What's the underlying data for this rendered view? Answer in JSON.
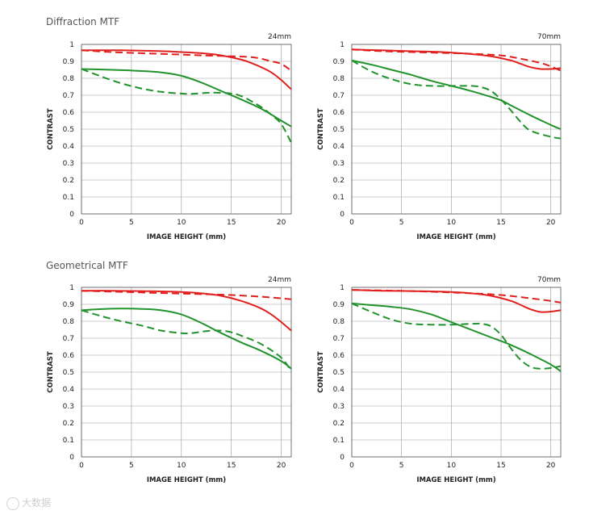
{
  "sections": [
    {
      "title": "Diffraction MTF"
    },
    {
      "title": "Geometrical MTF"
    }
  ],
  "colors": {
    "sagittal_red": "#e0201f",
    "meridional_green": "#22922c",
    "grid": "#999999"
  },
  "watermark": "大数据",
  "chart_data": [
    {
      "type": "line",
      "section": "Diffraction MTF",
      "focal_label": "24mm",
      "xlabel": "IMAGE HEIGHT (mm)",
      "ylabel": "CONTRAST",
      "xlim": [
        0,
        21
      ],
      "ylim": [
        0,
        1
      ],
      "xticks": [
        0,
        5,
        10,
        15,
        20
      ],
      "yticks": [
        0,
        0.1,
        0.2,
        0.3,
        0.4,
        0.5,
        0.6,
        0.7,
        0.8,
        0.9,
        1
      ],
      "series": [
        {
          "name": "red-solid",
          "color": "#e0201f",
          "dashed": false,
          "x": [
            0,
            2,
            4,
            6,
            8,
            10,
            12,
            14,
            16,
            17,
            18,
            19,
            20,
            21
          ],
          "y": [
            0.965,
            0.965,
            0.965,
            0.963,
            0.96,
            0.955,
            0.948,
            0.935,
            0.91,
            0.89,
            0.865,
            0.835,
            0.79,
            0.735
          ]
        },
        {
          "name": "red-dashed",
          "color": "#e0201f",
          "dashed": true,
          "x": [
            0,
            3,
            6,
            9,
            12,
            15,
            17,
            18,
            19,
            20,
            21
          ],
          "y": [
            0.965,
            0.955,
            0.948,
            0.942,
            0.935,
            0.93,
            0.925,
            0.915,
            0.9,
            0.885,
            0.845
          ]
        },
        {
          "name": "green-solid",
          "color": "#22922c",
          "dashed": false,
          "x": [
            0,
            2,
            4,
            6,
            8,
            10,
            12,
            14,
            16,
            18,
            20,
            21
          ],
          "y": [
            0.855,
            0.852,
            0.848,
            0.843,
            0.835,
            0.815,
            0.775,
            0.725,
            0.675,
            0.62,
            0.55,
            0.515
          ]
        },
        {
          "name": "green-dashed",
          "color": "#22922c",
          "dashed": true,
          "x": [
            0,
            2,
            4,
            6,
            8,
            10,
            11,
            13,
            15,
            16,
            17,
            18,
            19,
            20,
            21
          ],
          "y": [
            0.855,
            0.81,
            0.77,
            0.74,
            0.72,
            0.71,
            0.708,
            0.715,
            0.71,
            0.695,
            0.665,
            0.63,
            0.585,
            0.53,
            0.42
          ]
        }
      ]
    },
    {
      "type": "line",
      "section": "Diffraction MTF",
      "focal_label": "70mm",
      "xlabel": "IMAGE HEIGHT (mm)",
      "ylabel": "CONTRAST",
      "xlim": [
        0,
        21
      ],
      "ylim": [
        0,
        1
      ],
      "xticks": [
        0,
        5,
        10,
        15,
        20
      ],
      "yticks": [
        0,
        0.1,
        0.2,
        0.3,
        0.4,
        0.5,
        0.6,
        0.7,
        0.8,
        0.9,
        1
      ],
      "series": [
        {
          "name": "red-solid",
          "color": "#e0201f",
          "dashed": false,
          "x": [
            0,
            3,
            6,
            9,
            12,
            14,
            16,
            17,
            18,
            19,
            20,
            21
          ],
          "y": [
            0.97,
            0.965,
            0.96,
            0.955,
            0.943,
            0.93,
            0.905,
            0.885,
            0.865,
            0.855,
            0.855,
            0.86
          ]
        },
        {
          "name": "red-dashed",
          "color": "#e0201f",
          "dashed": true,
          "x": [
            0,
            3,
            6,
            9,
            12,
            15,
            17,
            19,
            20,
            21
          ],
          "y": [
            0.97,
            0.96,
            0.955,
            0.95,
            0.945,
            0.935,
            0.915,
            0.89,
            0.87,
            0.845
          ]
        },
        {
          "name": "green-solid",
          "color": "#22922c",
          "dashed": false,
          "x": [
            0,
            2,
            4,
            6,
            8,
            10,
            12,
            14,
            15,
            16,
            18,
            20,
            21
          ],
          "y": [
            0.905,
            0.88,
            0.85,
            0.82,
            0.785,
            0.755,
            0.725,
            0.69,
            0.67,
            0.64,
            0.58,
            0.525,
            0.5
          ]
        },
        {
          "name": "green-dashed",
          "color": "#22922c",
          "dashed": true,
          "x": [
            0,
            2,
            4,
            6,
            8,
            10,
            12,
            13,
            14,
            15,
            16,
            17,
            18,
            20,
            21
          ],
          "y": [
            0.905,
            0.84,
            0.795,
            0.765,
            0.755,
            0.755,
            0.755,
            0.748,
            0.725,
            0.675,
            0.61,
            0.54,
            0.49,
            0.455,
            0.445
          ]
        }
      ]
    },
    {
      "type": "line",
      "section": "Geometrical MTF",
      "focal_label": "24mm",
      "xlabel": "IMAGE HEIGHT (mm)",
      "ylabel": "CONTRAST",
      "xlim": [
        0,
        21
      ],
      "ylim": [
        0,
        1
      ],
      "xticks": [
        0,
        5,
        10,
        15,
        20
      ],
      "yticks": [
        0,
        0.1,
        0.2,
        0.3,
        0.4,
        0.5,
        0.6,
        0.7,
        0.8,
        0.9,
        1
      ],
      "series": [
        {
          "name": "red-solid",
          "color": "#e0201f",
          "dashed": false,
          "x": [
            0,
            3,
            6,
            9,
            12,
            14,
            16,
            18,
            19,
            20,
            21
          ],
          "y": [
            0.98,
            0.98,
            0.978,
            0.975,
            0.965,
            0.95,
            0.92,
            0.875,
            0.84,
            0.795,
            0.745
          ]
        },
        {
          "name": "red-dashed",
          "color": "#e0201f",
          "dashed": true,
          "x": [
            0,
            3,
            6,
            9,
            12,
            15,
            18,
            20,
            21
          ],
          "y": [
            0.98,
            0.975,
            0.97,
            0.965,
            0.96,
            0.955,
            0.945,
            0.935,
            0.93
          ]
        },
        {
          "name": "green-solid",
          "color": "#22922c",
          "dashed": false,
          "x": [
            0,
            2,
            4,
            6,
            8,
            10,
            12,
            14,
            16,
            18,
            20,
            21
          ],
          "y": [
            0.865,
            0.872,
            0.875,
            0.873,
            0.865,
            0.84,
            0.79,
            0.73,
            0.675,
            0.625,
            0.565,
            0.52
          ]
        },
        {
          "name": "green-dashed",
          "color": "#22922c",
          "dashed": true,
          "x": [
            0,
            2,
            4,
            6,
            8,
            10,
            11,
            12,
            13,
            14,
            15,
            16,
            18,
            20,
            21
          ],
          "y": [
            0.865,
            0.83,
            0.8,
            0.775,
            0.745,
            0.73,
            0.73,
            0.738,
            0.745,
            0.745,
            0.735,
            0.715,
            0.665,
            0.585,
            0.505
          ]
        }
      ]
    },
    {
      "type": "line",
      "section": "Geometrical MTF",
      "focal_label": "70mm",
      "xlabel": "IMAGE HEIGHT (mm)",
      "ylabel": "CONTRAST",
      "xlim": [
        0,
        21
      ],
      "ylim": [
        0,
        1
      ],
      "xticks": [
        0,
        5,
        10,
        15,
        20
      ],
      "yticks": [
        0,
        0.1,
        0.2,
        0.3,
        0.4,
        0.5,
        0.6,
        0.7,
        0.8,
        0.9,
        1
      ],
      "series": [
        {
          "name": "red-solid",
          "color": "#e0201f",
          "dashed": false,
          "x": [
            0,
            3,
            6,
            9,
            12,
            14,
            16,
            17,
            18,
            19,
            20,
            21
          ],
          "y": [
            0.985,
            0.98,
            0.978,
            0.975,
            0.965,
            0.95,
            0.92,
            0.895,
            0.87,
            0.855,
            0.857,
            0.865
          ]
        },
        {
          "name": "red-dashed",
          "color": "#e0201f",
          "dashed": true,
          "x": [
            0,
            3,
            6,
            9,
            12,
            15,
            18,
            20,
            21
          ],
          "y": [
            0.985,
            0.982,
            0.978,
            0.972,
            0.965,
            0.955,
            0.935,
            0.92,
            0.91
          ]
        },
        {
          "name": "green-solid",
          "color": "#22922c",
          "dashed": false,
          "x": [
            0,
            2,
            4,
            6,
            8,
            10,
            12,
            14,
            16,
            18,
            20,
            21
          ],
          "y": [
            0.905,
            0.895,
            0.885,
            0.87,
            0.84,
            0.795,
            0.75,
            0.705,
            0.66,
            0.605,
            0.545,
            0.505
          ]
        },
        {
          "name": "green-dashed",
          "color": "#22922c",
          "dashed": true,
          "x": [
            0,
            2,
            4,
            6,
            8,
            10,
            12,
            13,
            14,
            15,
            16,
            17,
            18,
            19,
            20,
            21
          ],
          "y": [
            0.905,
            0.855,
            0.81,
            0.785,
            0.78,
            0.78,
            0.785,
            0.785,
            0.77,
            0.72,
            0.64,
            0.57,
            0.53,
            0.52,
            0.525,
            0.535
          ]
        }
      ]
    }
  ]
}
